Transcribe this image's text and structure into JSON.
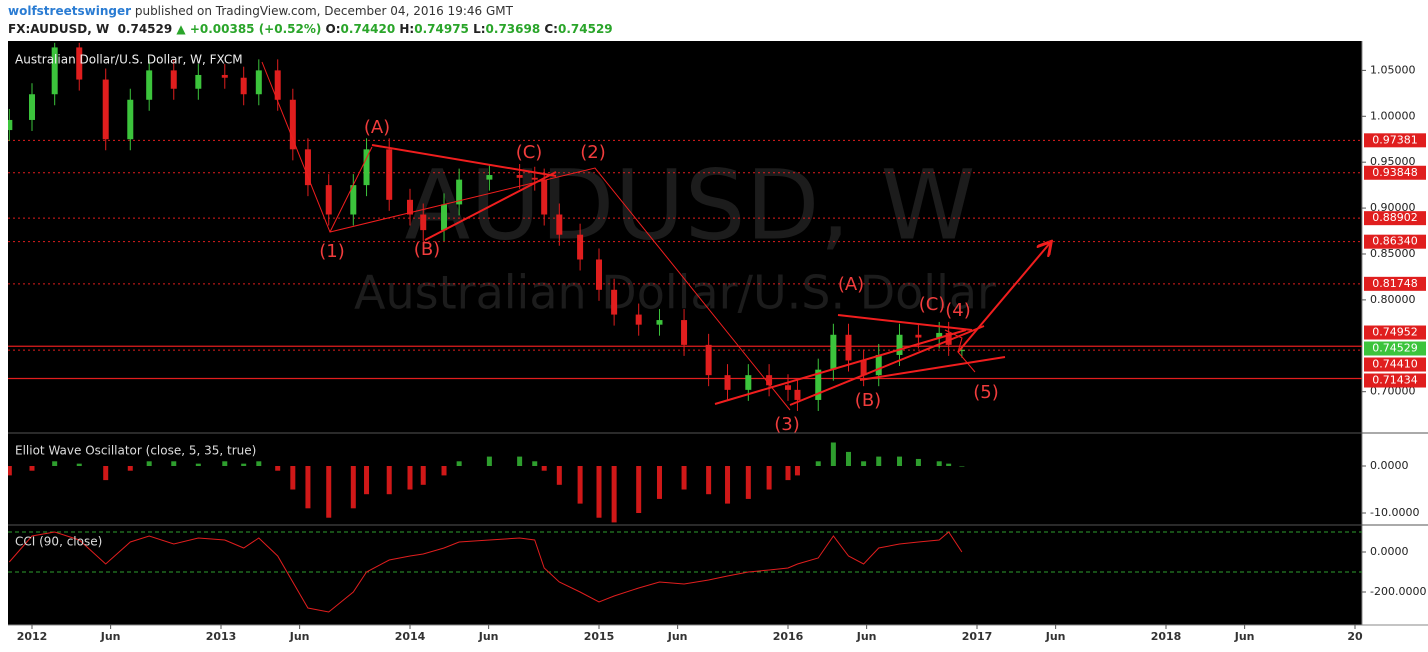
{
  "header": {
    "author": "wolfstreetswinger",
    "published": "published on TradingView.com, December 04, 2016 19:46 GMT",
    "symbol": "FX:AUDUSD, W",
    "last": "0.74529",
    "change": "▲ +0.00385 (+0.52%)",
    "ohlc": [
      {
        "key": "O:",
        "value": "0.74420"
      },
      {
        "key": "H:",
        "value": "0.74975"
      },
      {
        "key": "L:",
        "value": "0.73698"
      },
      {
        "key": "C:",
        "value": "0.74529"
      }
    ]
  },
  "chart_data": [
    {
      "type": "candlestick",
      "title": "Australian Dollar/U.S. Dollar, W, FXCM",
      "watermark": "AUDUSD, W",
      "watermark_subtitle": "Australian Dollar/U.S. Dollar",
      "x": [
        2011.88,
        2012.0,
        2012.12,
        2012.25,
        2012.39,
        2012.52,
        2012.62,
        2012.75,
        2012.88,
        2013.02,
        2013.12,
        2013.2,
        2013.3,
        2013.38,
        2013.46,
        2013.57,
        2013.7,
        2013.77,
        2013.89,
        2014.0,
        2014.07,
        2014.18,
        2014.26,
        2014.42,
        2014.58,
        2014.66,
        2014.71,
        2014.79,
        2014.9,
        2015.0,
        2015.08,
        2015.21,
        2015.32,
        2015.45,
        2015.58,
        2015.68,
        2015.79,
        2015.9,
        2016.0,
        2016.05,
        2016.16,
        2016.24,
        2016.32,
        2016.4,
        2016.48,
        2016.59,
        2016.69,
        2016.8,
        2016.85,
        2016.92
      ],
      "open": [
        0.985,
        0.996,
        1.024,
        1.075,
        1.04,
        0.975,
        1.018,
        1.05,
        1.03,
        1.045,
        1.042,
        1.024,
        1.05,
        1.018,
        0.964,
        0.925,
        0.893,
        0.925,
        0.964,
        0.909,
        0.893,
        0.876,
        0.904,
        0.931,
        0.936,
        0.933,
        0.931,
        0.893,
        0.871,
        0.844,
        0.811,
        0.784,
        0.773,
        0.778,
        0.751,
        0.718,
        0.702,
        0.718,
        0.707,
        0.702,
        0.691,
        0.724,
        0.762,
        0.734,
        0.718,
        0.74,
        0.762,
        0.759,
        0.764,
        0.7442
      ],
      "high": [
        1.008,
        1.036,
        1.08,
        1.08,
        1.052,
        1.03,
        1.062,
        1.062,
        1.057,
        1.057,
        1.054,
        1.062,
        1.062,
        1.03,
        0.976,
        0.937,
        0.937,
        0.976,
        0.976,
        0.921,
        0.905,
        0.916,
        0.943,
        0.948,
        0.948,
        0.945,
        0.943,
        0.905,
        0.883,
        0.856,
        0.823,
        0.796,
        0.79,
        0.79,
        0.763,
        0.73,
        0.73,
        0.73,
        0.719,
        0.714,
        0.736,
        0.774,
        0.774,
        0.746,
        0.752,
        0.774,
        0.774,
        0.776,
        0.776,
        0.74975
      ],
      "low": [
        0.973,
        0.984,
        1.012,
        1.028,
        0.963,
        0.963,
        1.006,
        1.018,
        1.018,
        1.03,
        1.012,
        1.012,
        1.006,
        0.952,
        0.913,
        0.881,
        0.881,
        0.913,
        0.897,
        0.881,
        0.864,
        0.864,
        0.892,
        0.919,
        0.921,
        0.919,
        0.881,
        0.859,
        0.832,
        0.799,
        0.772,
        0.761,
        0.761,
        0.739,
        0.706,
        0.69,
        0.69,
        0.695,
        0.69,
        0.679,
        0.679,
        0.712,
        0.722,
        0.706,
        0.706,
        0.728,
        0.747,
        0.747,
        0.739,
        0.73698
      ],
      "close": [
        0.996,
        1.024,
        1.075,
        1.04,
        0.975,
        1.018,
        1.05,
        1.03,
        1.045,
        1.042,
        1.024,
        1.05,
        1.018,
        0.964,
        0.925,
        0.893,
        0.925,
        0.964,
        0.909,
        0.893,
        0.876,
        0.904,
        0.931,
        0.936,
        0.933,
        0.931,
        0.893,
        0.871,
        0.844,
        0.811,
        0.784,
        0.773,
        0.778,
        0.751,
        0.718,
        0.702,
        0.718,
        0.707,
        0.702,
        0.691,
        0.724,
        0.762,
        0.734,
        0.718,
        0.74,
        0.762,
        0.759,
        0.764,
        0.751,
        0.74529
      ],
      "up_color": "#3cc43c",
      "down_color": "#e01e1e",
      "line_color": "#e01e1e",
      "xlim": [
        2011.873,
        2019.037
      ],
      "ylim": [
        0.655,
        1.082
      ],
      "yticks": [
        {
          "value": 1.05,
          "label": "1.05000"
        },
        {
          "value": 1.0,
          "label": "1.00000"
        },
        {
          "value": 0.95,
          "label": "0.95000"
        },
        {
          "value": 0.9,
          "label": "0.90000"
        },
        {
          "value": 0.85,
          "label": "0.85000"
        },
        {
          "value": 0.8,
          "label": "0.80000"
        },
        {
          "value": 0.7,
          "label": "0.70000"
        }
      ],
      "price_lines": [
        {
          "value": 0.97381,
          "style": "dotted",
          "color": "#e01e1e"
        },
        {
          "value": 0.93848,
          "style": "dotted",
          "color": "#e01e1e"
        },
        {
          "value": 0.88902,
          "style": "dotted",
          "color": "#e01e1e"
        },
        {
          "value": 0.8634,
          "label": "0.86340",
          "style": "dotted",
          "color": "#e01e1e"
        },
        {
          "value": 0.81748,
          "style": "dotted",
          "color": "#e01e1e"
        },
        {
          "value": 0.74952,
          "style": "solid",
          "color": "#e01e1e"
        },
        {
          "value": 0.74529,
          "style": "dotted",
          "color": "#3cc43c"
        },
        {
          "value": 0.7441,
          "label": "0.74410",
          "style": "none",
          "color": "#e01e1e"
        },
        {
          "value": 0.71434,
          "style": "solid",
          "color": "#e01e1e"
        }
      ],
      "annotations": [
        "(A)",
        "(C)",
        "(2)",
        "(1)",
        "(B)",
        "(A)",
        "(C)",
        "(4)",
        "(3)",
        "(B)",
        "(5)"
      ]
    },
    {
      "type": "bar",
      "title": "Elliot Wave Oscillator (close, 5, 35, true)",
      "x": [
        2011.88,
        2012.0,
        2012.12,
        2012.25,
        2012.39,
        2012.52,
        2012.62,
        2012.75,
        2012.88,
        2013.02,
        2013.12,
        2013.2,
        2013.3,
        2013.38,
        2013.46,
        2013.57,
        2013.7,
        2013.77,
        2013.89,
        2014.0,
        2014.07,
        2014.18,
        2014.26,
        2014.42,
        2014.58,
        2014.66,
        2014.71,
        2014.79,
        2014.9,
        2015.0,
        2015.08,
        2015.21,
        2015.32,
        2015.45,
        2015.58,
        2015.68,
        2015.79,
        2015.9,
        2016.0,
        2016.05,
        2016.16,
        2016.24,
        2016.32,
        2016.4,
        2016.48,
        2016.59,
        2016.69,
        2016.8,
        2016.85,
        2016.92
      ],
      "values": [
        -2,
        -1,
        1,
        0.5,
        -3,
        -1,
        1,
        1,
        0.5,
        1,
        0.5,
        1,
        -1,
        -5,
        -9,
        -11,
        -9,
        -6,
        -6,
        -5,
        -4,
        -2,
        1,
        2,
        2,
        1,
        -1,
        -4,
        -8,
        -11,
        -12,
        -10,
        -7,
        -5,
        -6,
        -8,
        -7,
        -5,
        -3,
        -2,
        1,
        5,
        3,
        1,
        2,
        2,
        1.5,
        1,
        0.5,
        0
      ],
      "up_color": "#2e9e2e",
      "down_color": "#d01818",
      "xlim": [
        2011.873,
        2019.037
      ],
      "ylim": [
        -12.55,
        7.02
      ],
      "yticks": [
        {
          "value": 0,
          "label": "0.0000"
        },
        {
          "value": -10,
          "label": "-10.0000"
        }
      ]
    },
    {
      "type": "line",
      "title": "CCI (90, close)",
      "x": [
        2011.88,
        2012.0,
        2012.12,
        2012.25,
        2012.39,
        2012.52,
        2012.62,
        2012.75,
        2012.88,
        2013.02,
        2013.12,
        2013.2,
        2013.3,
        2013.38,
        2013.46,
        2013.57,
        2013.7,
        2013.77,
        2013.89,
        2014.0,
        2014.07,
        2014.18,
        2014.26,
        2014.42,
        2014.58,
        2014.66,
        2014.71,
        2014.79,
        2014.9,
        2015.0,
        2015.08,
        2015.21,
        2015.32,
        2015.45,
        2015.58,
        2015.68,
        2015.79,
        2015.9,
        2016.0,
        2016.05,
        2016.16,
        2016.24,
        2016.32,
        2016.4,
        2016.48,
        2016.59,
        2016.69,
        2016.8,
        2016.85,
        2016.92
      ],
      "values": [
        -50,
        80,
        100,
        60,
        -60,
        50,
        80,
        40,
        70,
        60,
        20,
        70,
        -20,
        -150,
        -280,
        -300,
        -200,
        -100,
        -40,
        -20,
        -10,
        20,
        50,
        60,
        70,
        60,
        -80,
        -150,
        -200,
        -250,
        -220,
        -180,
        -150,
        -160,
        -140,
        -120,
        -100,
        -90,
        -80,
        -60,
        -30,
        80,
        -20,
        -60,
        20,
        40,
        50,
        60,
        100,
        0
      ],
      "color": "#e01e1e",
      "band_lines": [
        100,
        -100
      ],
      "band_color": "#2e9e2e",
      "xlim": [
        2011.873,
        2019.037
      ],
      "ylim": [
        -365,
        135
      ],
      "yticks": [
        {
          "value": 0,
          "label": "0.0000"
        },
        {
          "value": -200,
          "label": "-200.0000"
        }
      ],
      "xticks": [
        2012,
        {
          "value": 2012.416,
          "label": "Jun"
        },
        2013,
        {
          "value": 2013.416,
          "label": "Jun"
        },
        2014,
        {
          "value": 2014.416,
          "label": "Jun"
        },
        2015,
        {
          "value": 2015.416,
          "label": "Jun"
        },
        2016,
        {
          "value": 2016.416,
          "label": "Jun"
        },
        2017,
        {
          "value": 2017.416,
          "label": "Jun"
        },
        2018,
        {
          "value": 2018.416,
          "label": "Jun"
        },
        {
          "value": 2019,
          "label": "20"
        }
      ]
    }
  ]
}
